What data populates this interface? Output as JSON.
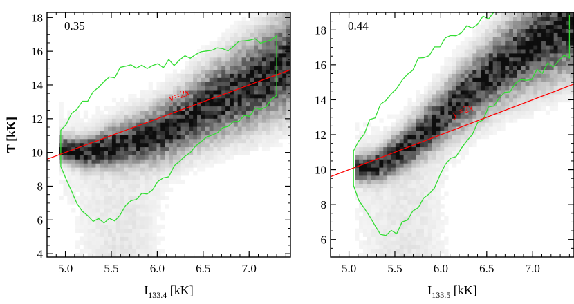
{
  "chart_data": [
    {
      "type": "heatmap",
      "title": "",
      "panel_label": "0.35",
      "xlabel": "I",
      "xlabel_sub": "133.4",
      "xlabel_unit": "[kK]",
      "ylabel": "T [kK]",
      "xlim": [
        4.8,
        7.45
      ],
      "ylim": [
        3.8,
        18.3
      ],
      "xticks": [
        5.0,
        5.5,
        6.0,
        6.5,
        7.0
      ],
      "xtick_labels": [
        "5.0",
        "5.5",
        "6.0",
        "6.5",
        "7.0"
      ],
      "yticks": [
        4,
        6,
        8,
        10,
        12,
        14,
        16,
        18
      ],
      "ytick_labels": [
        "4",
        "6",
        "8",
        "10",
        "12",
        "14",
        "16",
        "18"
      ],
      "grid": false,
      "colormap": "greyscale (white = low density, black = high density)",
      "density_ridge": {
        "x": [
          5.0,
          5.2,
          5.4,
          5.6,
          5.8,
          6.0,
          6.2,
          6.4,
          6.6,
          6.8,
          7.0,
          7.2
        ],
        "y": [
          10.2,
          10.0,
          10.2,
          10.5,
          10.8,
          11.1,
          11.6,
          12.3,
          12.9,
          13.5,
          14.0,
          14.6
        ]
      },
      "line": {
        "label": "y=2x",
        "color": "#ff0000",
        "x": [
          4.8,
          7.45
        ],
        "y": [
          9.6,
          14.9
        ]
      },
      "contour_color": "#33dd33"
    },
    {
      "type": "heatmap",
      "title": "",
      "panel_label": "0.44",
      "xlabel": "I",
      "xlabel_sub": "133.5",
      "xlabel_unit": "[kK]",
      "ylabel": "",
      "xlim": [
        4.8,
        7.45
      ],
      "ylim": [
        5.0,
        19.0
      ],
      "xticks": [
        5.0,
        5.5,
        6.0,
        6.5,
        7.0
      ],
      "xtick_labels": [
        "5.0",
        "5.5",
        "6.0",
        "6.5",
        "7.0"
      ],
      "yticks": [
        6,
        8,
        10,
        12,
        14,
        16,
        18
      ],
      "ytick_labels": [
        "6",
        "8",
        "10",
        "12",
        "14",
        "16",
        "18"
      ],
      "grid": false,
      "colormap": "greyscale (white = low density, black = high density)",
      "density_ridge": {
        "x": [
          5.1,
          5.3,
          5.5,
          5.7,
          5.9,
          6.1,
          6.3,
          6.5,
          6.7,
          6.9,
          7.1,
          7.3
        ],
        "y": [
          10.1,
          10.2,
          10.8,
          11.6,
          12.5,
          13.5,
          14.4,
          15.3,
          16.1,
          16.8,
          17.4,
          18.0
        ]
      },
      "line": {
        "label": "y=2x",
        "color": "#ff0000",
        "x": [
          4.8,
          7.45
        ],
        "y": [
          9.6,
          14.9
        ]
      },
      "contour_color": "#33dd33"
    }
  ]
}
